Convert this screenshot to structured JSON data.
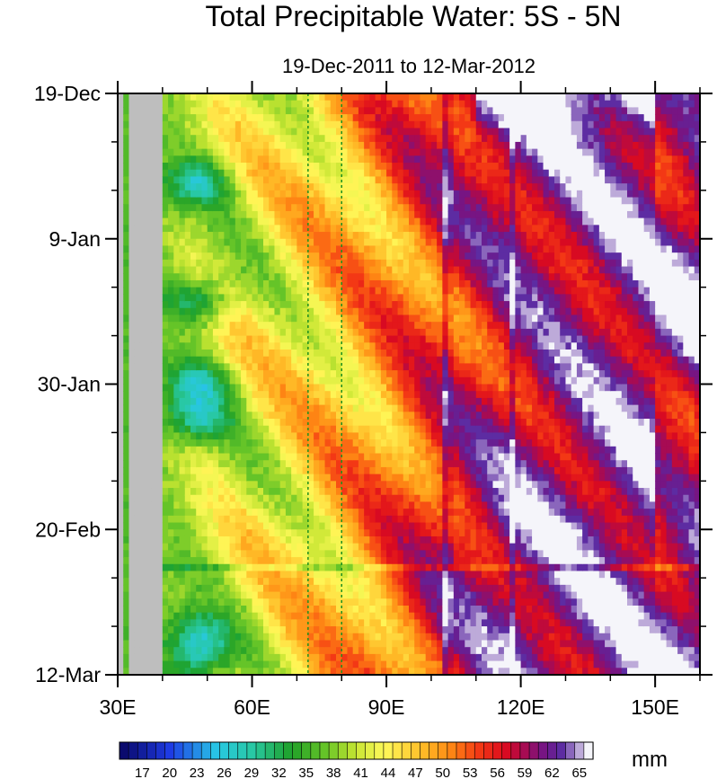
{
  "chart_data": {
    "type": "heatmap",
    "title": "Total Precipitable Water: 5S - 5N",
    "subtitle": "19-Dec-2011 to 12-Mar-2012",
    "units": "mm",
    "x_axis": {
      "range": [
        30,
        160
      ],
      "ticks": [
        {
          "value": 30,
          "label": "30E"
        },
        {
          "value": 60,
          "label": "60E"
        },
        {
          "value": 90,
          "label": "90E"
        },
        {
          "value": 120,
          "label": "120E"
        },
        {
          "value": 150,
          "label": "150E"
        }
      ],
      "minor_step": 10
    },
    "y_axis": {
      "range_days": [
        0,
        84
      ],
      "ticks": [
        {
          "day": 0,
          "label": "19-Dec"
        },
        {
          "day": 21,
          "label": "9-Jan"
        },
        {
          "day": 42,
          "label": "30-Jan"
        },
        {
          "day": 63,
          "label": "20-Feb"
        },
        {
          "day": 84,
          "label": "12-Mar"
        }
      ],
      "minor_step_days": 7
    },
    "reference_lines_lon": [
      72.5,
      80
    ],
    "colorbar": {
      "min": 15,
      "max": 66,
      "step": 1,
      "labels": [
        "17",
        "20",
        "23",
        "26",
        "29",
        "32",
        "35",
        "38",
        "41",
        "44",
        "47",
        "50",
        "53",
        "56",
        "59",
        "62",
        "65"
      ]
    }
  }
}
